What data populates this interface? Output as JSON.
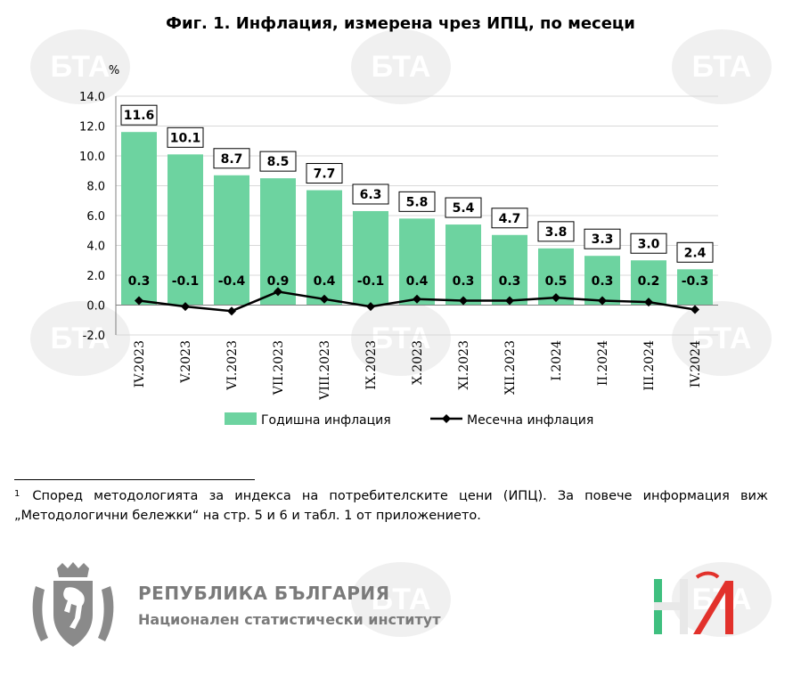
{
  "figure_title": "Фиг. 1. Инфлация, измерена чрез ИПЦ, по месеци",
  "footnote_mark": "1",
  "footnote_text": "Според методологията за индекса на потребителските цени (ИПЦ). За повече информация виж „Методологични бележки“ на стр. 5 и 6 и табл. 1 от приложението.",
  "org": {
    "name": "РЕПУБЛИКА БЪЛГАРИЯ",
    "sub": "Национален статистически институт"
  },
  "watermark_text": "БТА",
  "colors": {
    "bar": "#6dd3a0",
    "line": "#000000",
    "grid": "#d9d9d9"
  },
  "chart_data": {
    "type": "bar",
    "ylabel": "%",
    "ylim": [
      -2.0,
      14.0
    ],
    "yticks": [
      "14.0",
      "12.0",
      "10.0",
      "8.0",
      "6.0",
      "4.0",
      "2.0",
      "0.0",
      "-2.0"
    ],
    "grid": true,
    "legend_position": "bottom",
    "categories": [
      "IV.2023",
      "V.2023",
      "VI.2023",
      "VII.2023",
      "VIII.2023",
      "IX.2023",
      "X.2023",
      "XI.2023",
      "XII.2023",
      "I.2024",
      "II.2024",
      "III.2024",
      "IV.2024"
    ],
    "series": [
      {
        "name": "Годишна инфлация",
        "type": "bar",
        "values": [
          11.6,
          10.1,
          8.7,
          8.5,
          7.7,
          6.3,
          5.8,
          5.4,
          4.7,
          3.8,
          3.3,
          3.0,
          2.4
        ],
        "labels": [
          "11.6",
          "10.1",
          "8.7",
          "8.5",
          "7.7",
          "6.3",
          "5.8",
          "5.4",
          "4.7",
          "3.8",
          "3.3",
          "3.0",
          "2.4"
        ]
      },
      {
        "name": "Месечна инфлация",
        "type": "line",
        "values": [
          0.3,
          -0.1,
          -0.4,
          0.9,
          0.4,
          -0.1,
          0.4,
          0.3,
          0.3,
          0.5,
          0.3,
          0.2,
          -0.3
        ],
        "labels": [
          "0.3",
          "-0.1",
          "-0.4",
          "0.9",
          "0.4",
          "-0.1",
          "0.4",
          "0.3",
          "0.3",
          "0.5",
          "0.3",
          "0.2",
          "-0.3"
        ]
      }
    ]
  }
}
